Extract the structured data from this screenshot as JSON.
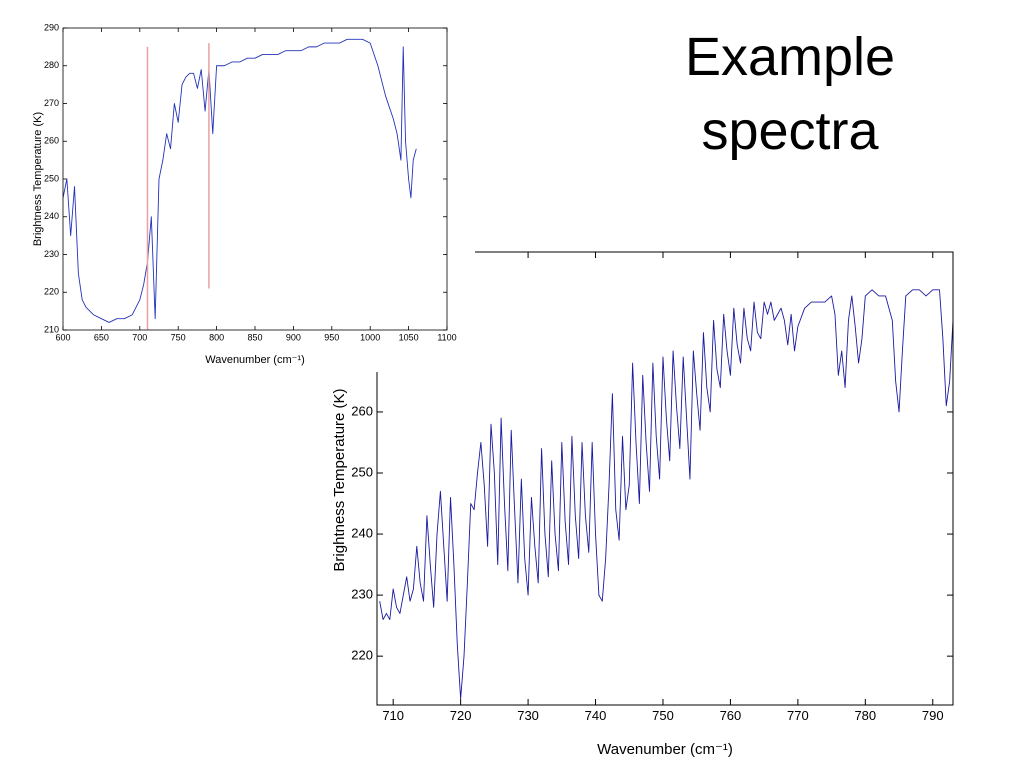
{
  "title": "Example spectra",
  "chart_data": [
    {
      "type": "line",
      "x_label": "Wavenumber (cm⁻¹)",
      "y_label": "Brightness Temperature (K)",
      "xlim": [
        600,
        1100
      ],
      "ylim": [
        210,
        290
      ],
      "xticks": [
        600,
        650,
        700,
        750,
        800,
        850,
        900,
        950,
        1000,
        1050,
        1100
      ],
      "yticks": [
        210,
        220,
        230,
        240,
        250,
        260,
        270,
        280,
        290
      ],
      "color": "#2233bb",
      "x": [
        600,
        605,
        610,
        615,
        620,
        625,
        630,
        640,
        650,
        660,
        670,
        680,
        690,
        700,
        705,
        710,
        715,
        720,
        725,
        730,
        735,
        740,
        745,
        750,
        755,
        760,
        765,
        770,
        775,
        780,
        785,
        790,
        795,
        800,
        810,
        820,
        830,
        840,
        850,
        860,
        870,
        880,
        890,
        900,
        910,
        920,
        930,
        940,
        950,
        960,
        970,
        980,
        990,
        1000,
        1010,
        1020,
        1030,
        1035,
        1040,
        1043,
        1046,
        1050,
        1053,
        1056,
        1060
      ],
      "values": [
        245,
        250,
        235,
        248,
        225,
        218,
        216,
        214,
        213,
        212,
        213,
        213,
        214,
        218,
        222,
        228,
        240,
        213,
        250,
        255,
        262,
        258,
        270,
        265,
        275,
        277,
        278,
        278,
        274,
        279,
        268,
        279,
        262,
        280,
        280,
        281,
        281,
        282,
        282,
        283,
        283,
        283,
        284,
        284,
        284,
        285,
        285,
        286,
        286,
        286,
        287,
        287,
        287,
        286,
        280,
        272,
        266,
        262,
        255,
        285,
        260,
        250,
        245,
        255,
        258
      ],
      "vlines": [
        {
          "x": 710,
          "y": [
            210,
            285
          ],
          "color": "#e8a0a0"
        },
        {
          "x": 790,
          "y": [
            221,
            286
          ],
          "color": "#e8a0a0"
        }
      ]
    },
    {
      "type": "line",
      "x_label": "Wavenumber (cm⁻¹)",
      "y_label": "Brightness Temperature (K)",
      "xlim": [
        707.6,
        793
      ],
      "ylim": [
        212,
        286.2
      ],
      "xticks": [
        710,
        720,
        730,
        740,
        750,
        760,
        770,
        780,
        790
      ],
      "yticks": [
        220,
        230,
        240,
        250,
        260
      ],
      "color": "#1a1aa0",
      "x": [
        708,
        708.5,
        709,
        709.5,
        710,
        710.5,
        711,
        711.5,
        712,
        712.5,
        713,
        713.5,
        714,
        714.5,
        715,
        715.5,
        716,
        716.5,
        717,
        717.5,
        718,
        718.5,
        719,
        719.5,
        720,
        720.5,
        721,
        721.5,
        722,
        722.5,
        723,
        723.5,
        724,
        724.5,
        725,
        725.5,
        726,
        726.5,
        727,
        727.5,
        728,
        728.5,
        729,
        729.5,
        730,
        730.5,
        731,
        731.5,
        732,
        732.5,
        733,
        733.5,
        734,
        734.5,
        735,
        735.5,
        736,
        736.5,
        737,
        737.5,
        738,
        738.5,
        739,
        739.5,
        740,
        740.5,
        741,
        741.5,
        742,
        742.5,
        743,
        743.5,
        744,
        744.5,
        745,
        745.5,
        746,
        746.5,
        747,
        747.5,
        748,
        748.5,
        749,
        749.5,
        750,
        750.5,
        751,
        751.5,
        752,
        752.5,
        753,
        753.5,
        754,
        754.5,
        755,
        755.5,
        756,
        756.5,
        757,
        757.5,
        758,
        758.5,
        759,
        759.5,
        760,
        760.5,
        761,
        761.5,
        762,
        762.5,
        763,
        763.5,
        764,
        764.5,
        765,
        765.5,
        766,
        766.5,
        767,
        767.5,
        768,
        768.5,
        769,
        769.5,
        770,
        771,
        772,
        773,
        774,
        775,
        775.5,
        776,
        776.5,
        777,
        777.5,
        778,
        778.5,
        779,
        779.5,
        780,
        781,
        782,
        783,
        784,
        784.5,
        785,
        785.5,
        786,
        787,
        788,
        789,
        790,
        791,
        791.5,
        792,
        792.5,
        793
      ],
      "values": [
        229,
        226,
        227,
        226,
        231,
        228,
        227,
        230,
        233,
        229,
        231,
        238,
        232,
        229,
        243,
        235,
        228,
        240,
        247,
        238,
        229,
        246,
        235,
        222,
        213,
        220,
        232,
        245,
        244,
        250,
        255,
        248,
        238,
        258,
        250,
        235,
        259,
        245,
        234,
        257,
        244,
        232,
        249,
        236,
        230,
        246,
        238,
        232,
        254,
        240,
        233,
        252,
        240,
        234,
        255,
        242,
        235,
        256,
        243,
        236,
        255,
        243,
        237,
        255,
        240,
        230,
        229,
        236,
        248,
        263,
        244,
        239,
        256,
        244,
        248,
        268,
        255,
        245,
        266,
        255,
        247,
        268,
        256,
        249,
        269,
        259,
        252,
        270,
        261,
        254,
        269,
        259,
        249,
        270,
        263,
        257,
        273,
        264,
        260,
        275,
        267,
        264,
        276,
        270,
        266,
        277,
        271,
        268,
        277,
        272,
        270,
        278,
        273,
        272,
        278,
        276,
        278,
        275,
        276,
        277,
        275,
        271,
        276,
        270,
        274,
        277,
        278,
        278,
        278,
        279,
        276,
        266,
        270,
        264,
        275,
        279,
        274,
        268,
        272,
        279,
        280,
        279,
        279,
        275,
        265,
        260,
        270,
        279,
        280,
        280,
        279,
        280,
        280,
        272,
        261,
        265,
        275
      ]
    }
  ]
}
